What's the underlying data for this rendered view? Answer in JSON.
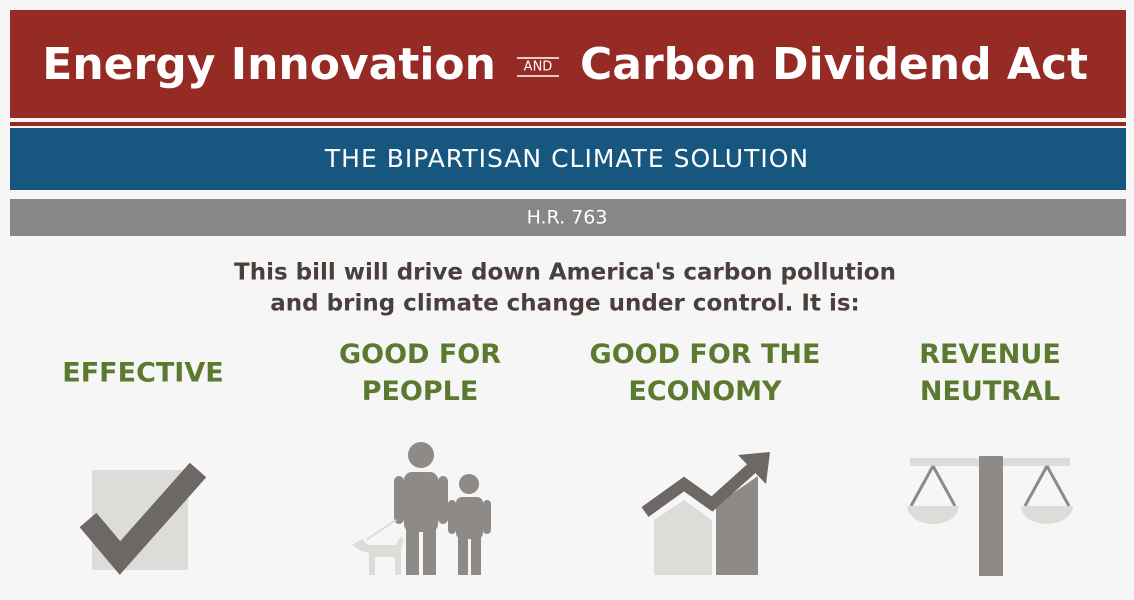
{
  "header": {
    "title_left": "Energy Innovation",
    "conjunction": "AND",
    "title_right": "Carbon Dividend Act"
  },
  "subtitle": "THE BIPARTISAN CLIMATE SOLUTION",
  "bill": "H.R. 763",
  "intro": [
    "This bill will drive down America's carbon pollution",
    "and bring climate change under control. It is:"
  ],
  "features": [
    {
      "lines": [
        "EFFECTIVE"
      ]
    },
    {
      "lines": [
        "GOOD FOR",
        "PEOPLE"
      ]
    },
    {
      "lines": [
        "GOOD FOR THE",
        "ECONOMY"
      ]
    },
    {
      "lines": [
        "REVENUE",
        "NEUTRAL"
      ]
    }
  ]
}
